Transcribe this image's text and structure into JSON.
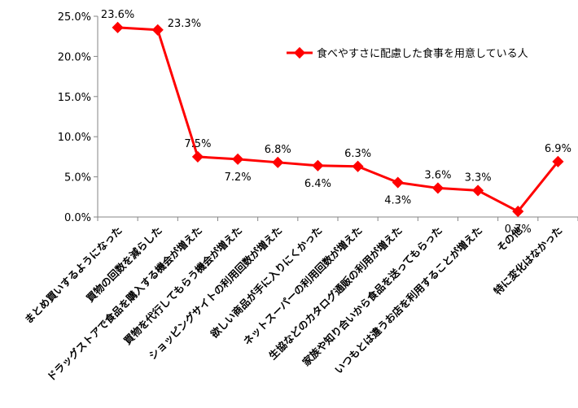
{
  "chart_data": {
    "type": "line",
    "categories": [
      "まとめ買いするようになった",
      "買物の回数を減らした",
      "ドラッグストアで食品を購入する機会が増えた",
      "買物を代行してもらう機会が増えた",
      "ショッピングサイトの利用回数が増えた",
      "欲しい商品が手に入りにくかった",
      "ネットスーパーの利用回数が増えた",
      "生協などのカタログ通販の利用が増えた",
      "家族や知り合いから食品を送ってもらった",
      "いつもとは違うお店を利用することが増えた",
      "その他",
      "特に変化はなかった"
    ],
    "series": [
      {
        "name": "食べやすさに配慮した食事を用意している人",
        "values": [
          23.6,
          23.3,
          7.5,
          7.2,
          6.8,
          6.4,
          6.3,
          4.3,
          3.6,
          3.3,
          0.7,
          6.9
        ],
        "labels": [
          "23.6%",
          "23.3%",
          "7.5%",
          "7.2%",
          "6.8%",
          "6.4%",
          "6.3%",
          "4.3%",
          "3.6%",
          "3.3%",
          "0.7%",
          "6.9%"
        ],
        "color": "#ff0000"
      }
    ],
    "y_ticks": [
      "0.0%",
      "5.0%",
      "10.0%",
      "15.0%",
      "20.0%",
      "25.0%"
    ],
    "ylim": [
      0,
      25
    ],
    "grid": false,
    "legend_position": "top-right"
  }
}
